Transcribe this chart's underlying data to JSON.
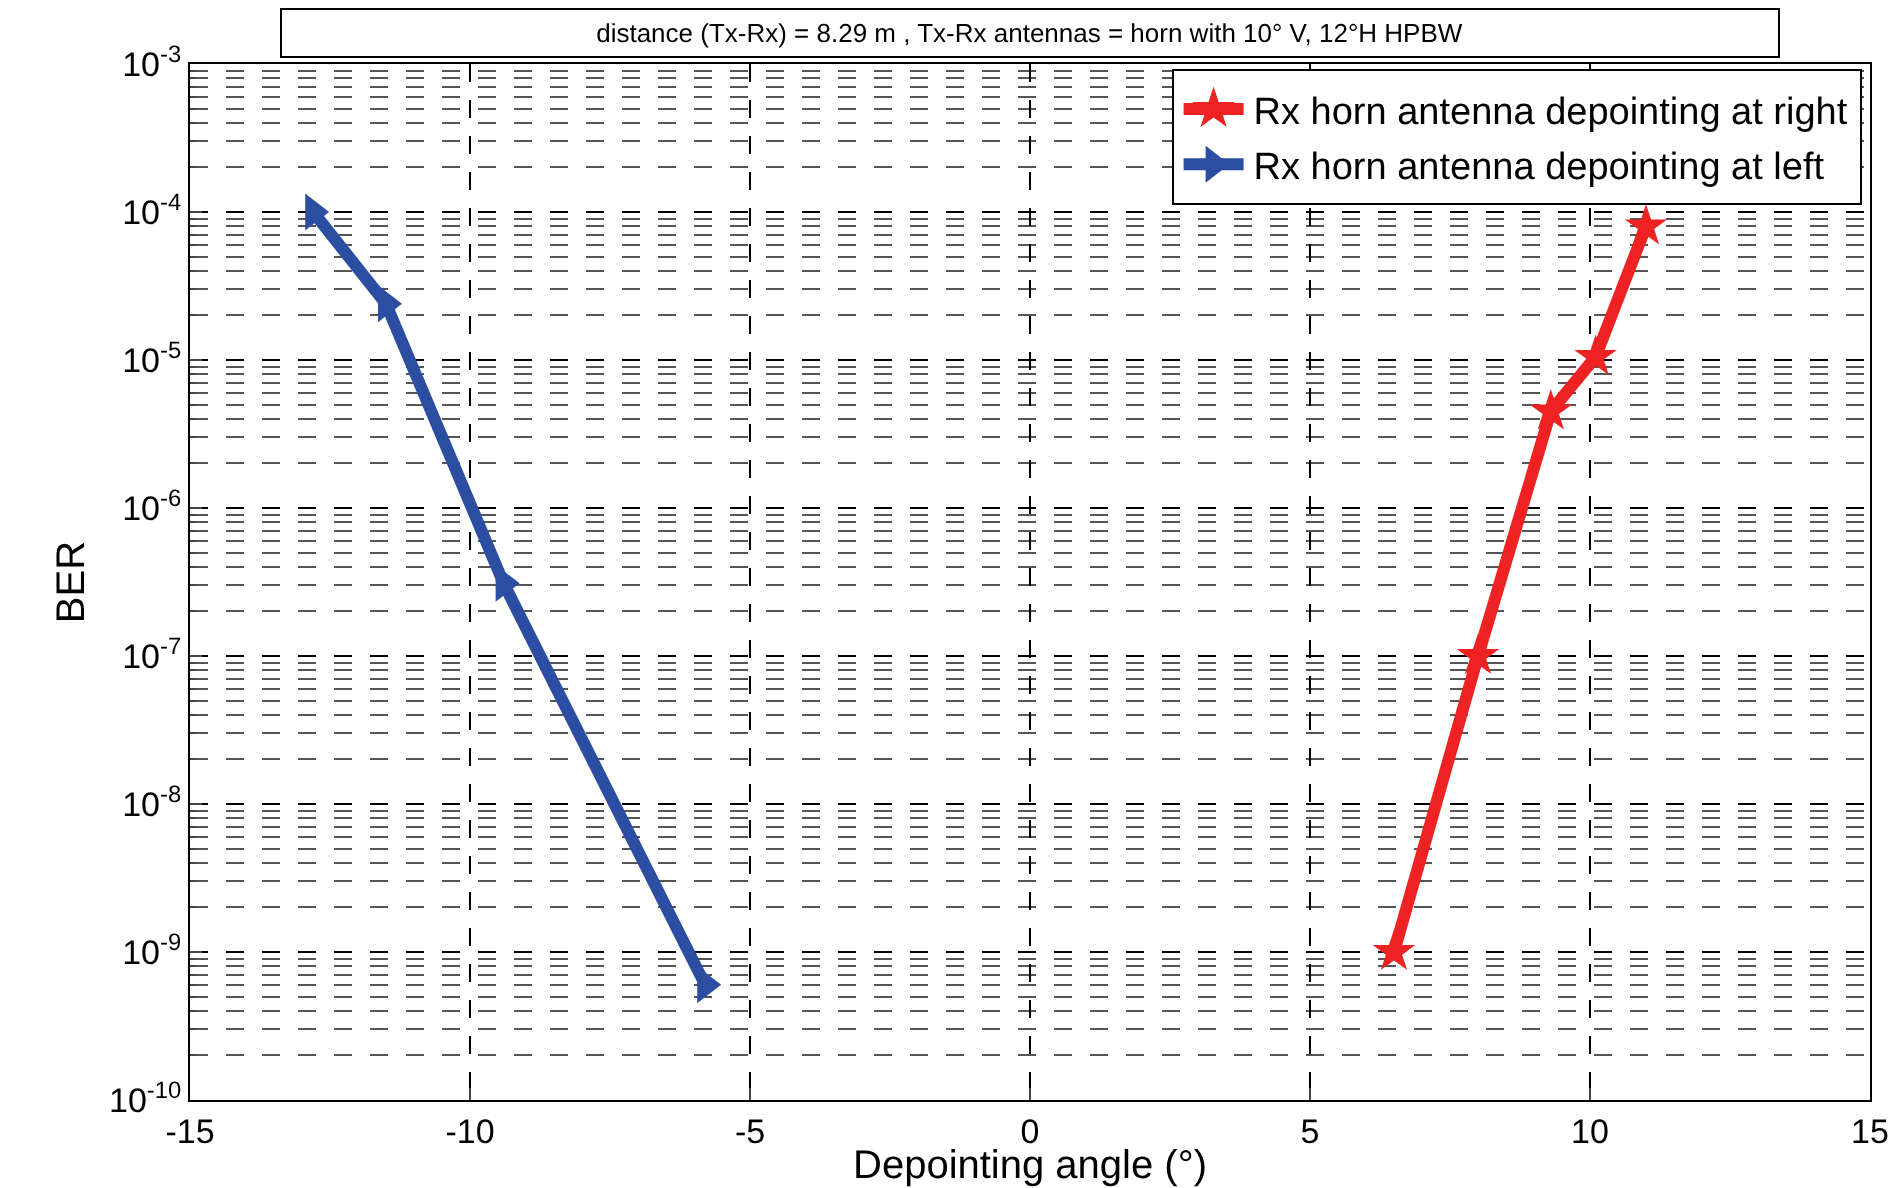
{
  "chart_data": {
    "type": "line",
    "title": "distance (Tx-Rx) = 8.29 m , Tx-Rx antennas = horn with 10° V, 12°H HPBW",
    "xlabel": "Depointing angle (°)",
    "ylabel": "BER",
    "log": "y",
    "grid": true,
    "legend": "top right",
    "line_style": "solid",
    "xlim": [
      -15,
      15
    ],
    "xticks": [
      -15,
      -10,
      -5,
      0,
      5,
      10,
      15
    ],
    "ylim": [
      1e-10,
      0.001
    ],
    "yticks": [
      {
        "value": 1e-10,
        "label": "10$^{-10}$"
      },
      {
        "value": 1e-09,
        "label": "10$^{-9}$"
      },
      {
        "value": 1e-08,
        "label": "10$^{-8}$"
      },
      {
        "value": 1e-07,
        "label": "10$^{-7}$"
      },
      {
        "value": 1e-06,
        "label": "10$^{-6}$"
      },
      {
        "value": 1e-05,
        "label": "10$^{-5}$"
      },
      {
        "value": 0.0001,
        "label": "10$^{-4}$"
      },
      {
        "value": 0.001,
        "label": "10$^{-3}$"
      }
    ],
    "series": [
      {
        "name": "Rx horn antenna depointing at right",
        "color": "#ee2222",
        "marker": "star",
        "x": [
          6.5,
          8,
          9.3,
          10.1,
          11
        ],
        "values": [
          1e-09,
          1e-07,
          4.5e-06,
          1.05e-05,
          8e-05
        ]
      },
      {
        "name": "Rx horn antenna depointing at left",
        "color": "#2b4ea2",
        "marker": "triangle",
        "x": [
          -12.8,
          -11.5,
          -9.4,
          -5.8
        ],
        "values": [
          0.0001,
          2.4e-05,
          3.1e-07,
          6e-10
        ]
      }
    ]
  }
}
